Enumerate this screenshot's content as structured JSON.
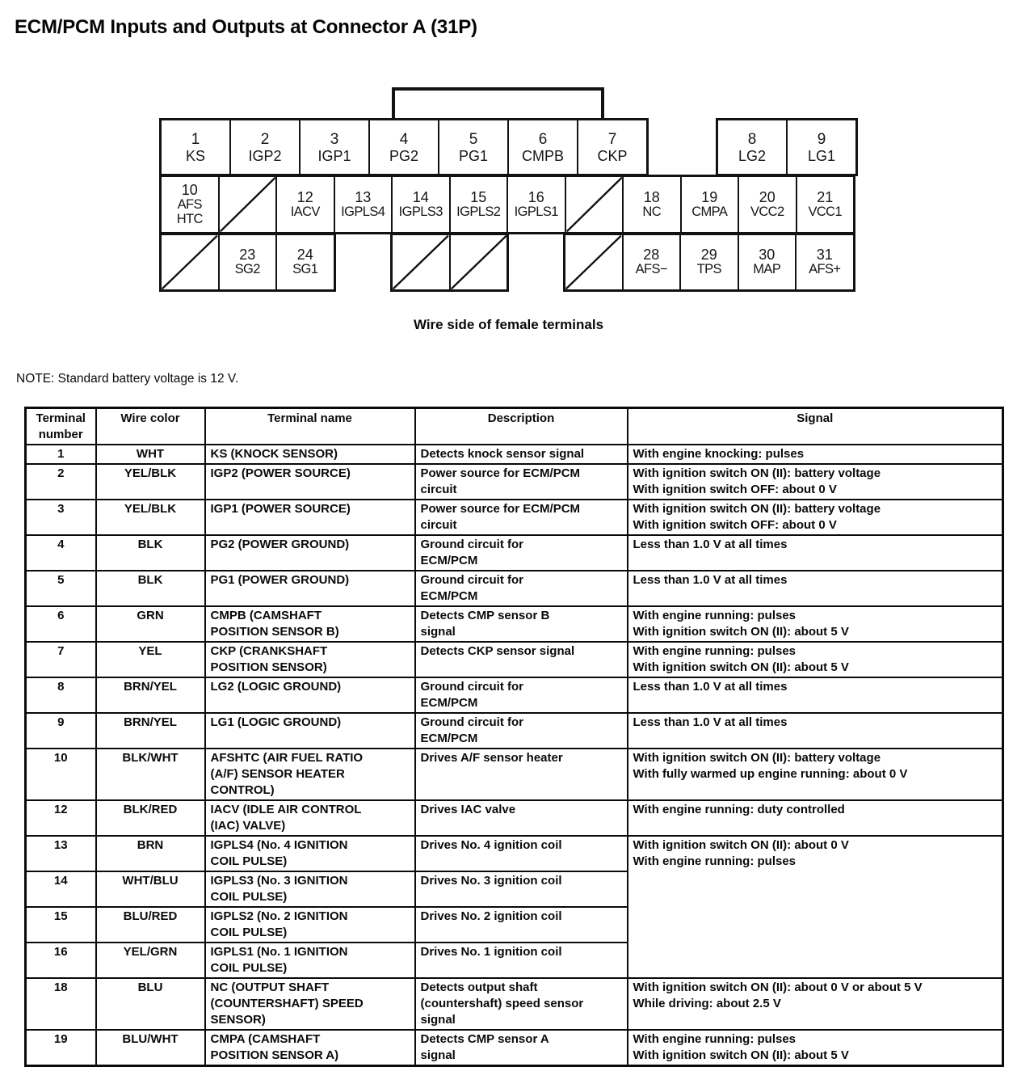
{
  "title": "ECM/PCM Inputs and Outputs at Connector A (31P)",
  "note": "NOTE: Standard battery voltage is 12 V.",
  "connector": {
    "caption": "Wire side of female terminals",
    "rows": [
      {
        "blocks": [
          [
            {
              "num": "1",
              "label": "KS"
            },
            {
              "num": "2",
              "label": "IGP2"
            },
            {
              "num": "3",
              "label": "IGP1"
            },
            {
              "num": "4",
              "label": "PG2"
            },
            {
              "num": "5",
              "label": "PG1"
            },
            {
              "num": "6",
              "label": "CMPB"
            },
            {
              "num": "7",
              "label": "CKP"
            }
          ],
          [
            {
              "num": "8",
              "label": "LG2"
            },
            {
              "num": "9",
              "label": "LG1"
            }
          ]
        ]
      },
      {
        "blocks": [
          [
            {
              "num": "10",
              "label": "AFS\nHTC"
            },
            {
              "empty": true
            },
            {
              "num": "12",
              "label": "IACV"
            },
            {
              "num": "13",
              "label": "IGPLS4"
            },
            {
              "num": "14",
              "label": "IGPLS3"
            },
            {
              "num": "15",
              "label": "IGPLS2"
            },
            {
              "num": "16",
              "label": "IGPLS1"
            },
            {
              "empty": true
            },
            {
              "num": "18",
              "label": "NC"
            },
            {
              "num": "19",
              "label": "CMPA"
            },
            {
              "num": "20",
              "label": "VCC2"
            },
            {
              "num": "21",
              "label": "VCC1"
            }
          ]
        ]
      },
      {
        "blocks": [
          [
            {
              "empty": true
            },
            {
              "num": "23",
              "label": "SG2"
            },
            {
              "num": "24",
              "label": "SG1"
            }
          ],
          [
            {
              "empty": true
            },
            {
              "empty": true
            }
          ],
          [
            {
              "empty": true
            },
            {
              "num": "28",
              "label": "AFS−"
            },
            {
              "num": "29",
              "label": "TPS"
            },
            {
              "num": "30",
              "label": "MAP"
            },
            {
              "num": "31",
              "label": "AFS+"
            }
          ]
        ]
      }
    ]
  },
  "table": {
    "headers": [
      "Terminal\nnumber",
      "Wire color",
      "Terminal name",
      "Description",
      "Signal"
    ],
    "rows": [
      {
        "terminal": "1",
        "wire": "WHT",
        "name": "KS (KNOCK SENSOR)",
        "desc": "Detects knock sensor signal",
        "signal": "With engine knocking: pulses"
      },
      {
        "terminal": "2",
        "wire": "YEL/BLK",
        "name": "IGP2 (POWER SOURCE)",
        "desc": "Power source for ECM/PCM\ncircuit",
        "signal": "With ignition switch ON (II): battery voltage\nWith ignition switch OFF: about 0 V"
      },
      {
        "terminal": "3",
        "wire": "YEL/BLK",
        "name": "IGP1 (POWER SOURCE)",
        "desc": "Power source for ECM/PCM\ncircuit",
        "signal": "With ignition switch ON (II): battery voltage\nWith ignition switch OFF: about 0 V"
      },
      {
        "terminal": "4",
        "wire": "BLK",
        "name": "PG2 (POWER GROUND)",
        "desc": "Ground circuit for\nECM/PCM",
        "signal": "Less than 1.0 V at all times"
      },
      {
        "terminal": "5",
        "wire": "BLK",
        "name": "PG1 (POWER GROUND)",
        "desc": "Ground circuit for\nECM/PCM",
        "signal": "Less than 1.0 V at all times"
      },
      {
        "terminal": "6",
        "wire": "GRN",
        "name": "CMPB (CAMSHAFT\nPOSITION SENSOR B)",
        "desc": "Detects CMP sensor B\nsignal",
        "signal": "With engine running: pulses\nWith ignition switch ON (II): about 5 V"
      },
      {
        "terminal": "7",
        "wire": "YEL",
        "name": "CKP (CRANKSHAFT\nPOSITION SENSOR)",
        "desc": "Detects CKP sensor signal",
        "signal": "With engine running: pulses\nWith ignition switch ON (II): about 5 V"
      },
      {
        "terminal": "8",
        "wire": "BRN/YEL",
        "name": "LG2 (LOGIC GROUND)",
        "desc": "Ground circuit for\nECM/PCM",
        "signal": "Less than 1.0 V at all times"
      },
      {
        "terminal": "9",
        "wire": "BRN/YEL",
        "name": "LG1 (LOGIC GROUND)",
        "desc": "Ground circuit for\nECM/PCM",
        "signal": "Less than 1.0 V at all times"
      },
      {
        "terminal": "10",
        "wire": "BLK/WHT",
        "name": "AFSHTC (AIR FUEL RATIO\n(A/F) SENSOR HEATER\nCONTROL)",
        "desc": "Drives A/F sensor heater",
        "signal": "With ignition switch ON (II): battery voltage\nWith fully warmed up engine running: about 0 V"
      },
      {
        "terminal": "12",
        "wire": "BLK/RED",
        "name": "IACV (IDLE AIR CONTROL\n(IAC) VALVE)",
        "desc": "Drives IAC valve",
        "signal": "With engine running: duty controlled"
      },
      {
        "terminal": "13",
        "wire": "BRN",
        "name": "IGPLS4 (No. 4 IGNITION\nCOIL PULSE)",
        "desc": "Drives No. 4 ignition coil",
        "signal": "With ignition switch ON (II): about 0 V\nWith engine running: pulses",
        "signal_rowspan": 4
      },
      {
        "terminal": "14",
        "wire": "WHT/BLU",
        "name": "IGPLS3 (No. 3 IGNITION\nCOIL PULSE)",
        "desc": "Drives No. 3 ignition coil",
        "signal": null
      },
      {
        "terminal": "15",
        "wire": "BLU/RED",
        "name": "IGPLS2 (No. 2 IGNITION\nCOIL PULSE)",
        "desc": "Drives No. 2 ignition coil",
        "signal": null
      },
      {
        "terminal": "16",
        "wire": "YEL/GRN",
        "name": "IGPLS1 (No. 1 IGNITION\nCOIL PULSE)",
        "desc": "Drives No. 1 ignition coil",
        "signal": null
      },
      {
        "terminal": "18",
        "wire": "BLU",
        "name": "NC (OUTPUT SHAFT\n(COUNTERSHAFT) SPEED\nSENSOR)",
        "desc": "Detects output shaft\n(countershaft) speed sensor\nsignal",
        "signal": "With ignition switch ON (II): about 0 V or about 5 V\nWhile driving: about 2.5 V"
      },
      {
        "terminal": "19",
        "wire": "BLU/WHT",
        "name": "CMPA (CAMSHAFT\nPOSITION SENSOR A)",
        "desc": "Detects CMP sensor A\nsignal",
        "signal": "With engine running: pulses\nWith ignition switch ON (II): about 5 V"
      }
    ]
  }
}
